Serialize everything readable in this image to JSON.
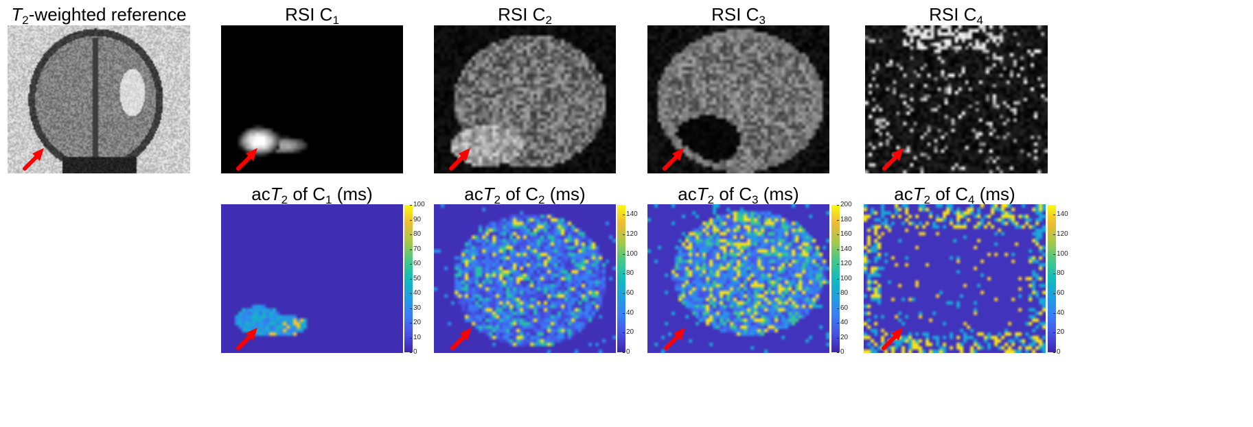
{
  "top_row": [
    {
      "id": "t2",
      "title_pre": "",
      "title_italic": "T",
      "title_sub": "2",
      "title_post": "-weighted reference"
    },
    {
      "id": "c1",
      "title_pre": "RSI C",
      "title_italic": "",
      "title_sub": "1",
      "title_post": ""
    },
    {
      "id": "c2",
      "title_pre": "RSI C",
      "title_italic": "",
      "title_sub": "2",
      "title_post": ""
    },
    {
      "id": "c3",
      "title_pre": "RSI C",
      "title_italic": "",
      "title_sub": "3",
      "title_post": ""
    },
    {
      "id": "c4",
      "title_pre": "RSI C",
      "title_italic": "",
      "title_sub": "4",
      "title_post": ""
    }
  ],
  "bottom_row": [
    {
      "id": "m1",
      "title_pre": "ac",
      "title_italic": "T",
      "title_sub2": "2",
      "title_mid": " of C",
      "title_sub": "1",
      "title_post": " (ms)",
      "colorbar": {
        "min": 0,
        "max": 100,
        "ticks": [
          "100",
          "90",
          "80",
          "70",
          "60",
          "50",
          "40",
          "30",
          "20",
          "10",
          "0"
        ]
      }
    },
    {
      "id": "m2",
      "title_pre": "ac",
      "title_italic": "T",
      "title_sub2": "2",
      "title_mid": " of C",
      "title_sub": "2",
      "title_post": " (ms)",
      "colorbar": {
        "min": 0,
        "max": 150,
        "ticks": [
          "140",
          "120",
          "100",
          "80",
          "60",
          "40",
          "20",
          "0"
        ]
      }
    },
    {
      "id": "m3",
      "title_pre": "ac",
      "title_italic": "T",
      "title_sub2": "2",
      "title_mid": " of C",
      "title_sub": "3",
      "title_post": " (ms)",
      "colorbar": {
        "min": 0,
        "max": 200,
        "ticks": [
          "200",
          "180",
          "160",
          "140",
          "120",
          "100",
          "80",
          "60",
          "40",
          "20",
          "0"
        ]
      }
    },
    {
      "id": "m4",
      "title_pre": "ac",
      "title_italic": "T",
      "title_sub2": "2",
      "title_mid": " of C",
      "title_sub": "4",
      "title_post": " (ms)",
      "colorbar": {
        "min": 0,
        "max": 150,
        "ticks": [
          "140",
          "120",
          "100",
          "80",
          "60",
          "40",
          "20",
          "0"
        ]
      }
    }
  ],
  "arrow_color": "#ff0000",
  "colormap": "parula"
}
